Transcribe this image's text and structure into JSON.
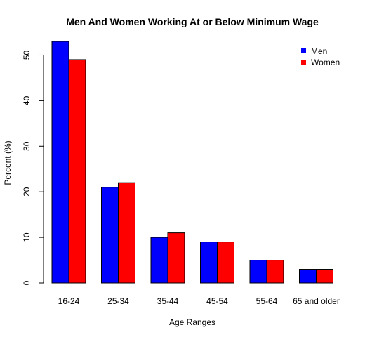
{
  "chart_data": {
    "type": "bar",
    "title": "Men And Women Working At or Below Minimum Wage",
    "xlabel": "Age Ranges",
    "ylabel": "Percent (%)",
    "categories": [
      "16-24",
      "25-34",
      "35-44",
      "45-54",
      "55-64",
      "65 and older"
    ],
    "series": [
      {
        "name": "Men",
        "color": "#0000ff",
        "values": [
          53,
          21,
          10,
          9,
          5,
          3
        ]
      },
      {
        "name": "Women",
        "color": "#ff0000",
        "values": [
          49,
          22,
          11,
          9,
          5,
          3
        ]
      }
    ],
    "ylim": [
      0,
      53
    ],
    "yticks": [
      0,
      10,
      20,
      30,
      40,
      50
    ],
    "legend_position": "top-right",
    "grid": false
  }
}
